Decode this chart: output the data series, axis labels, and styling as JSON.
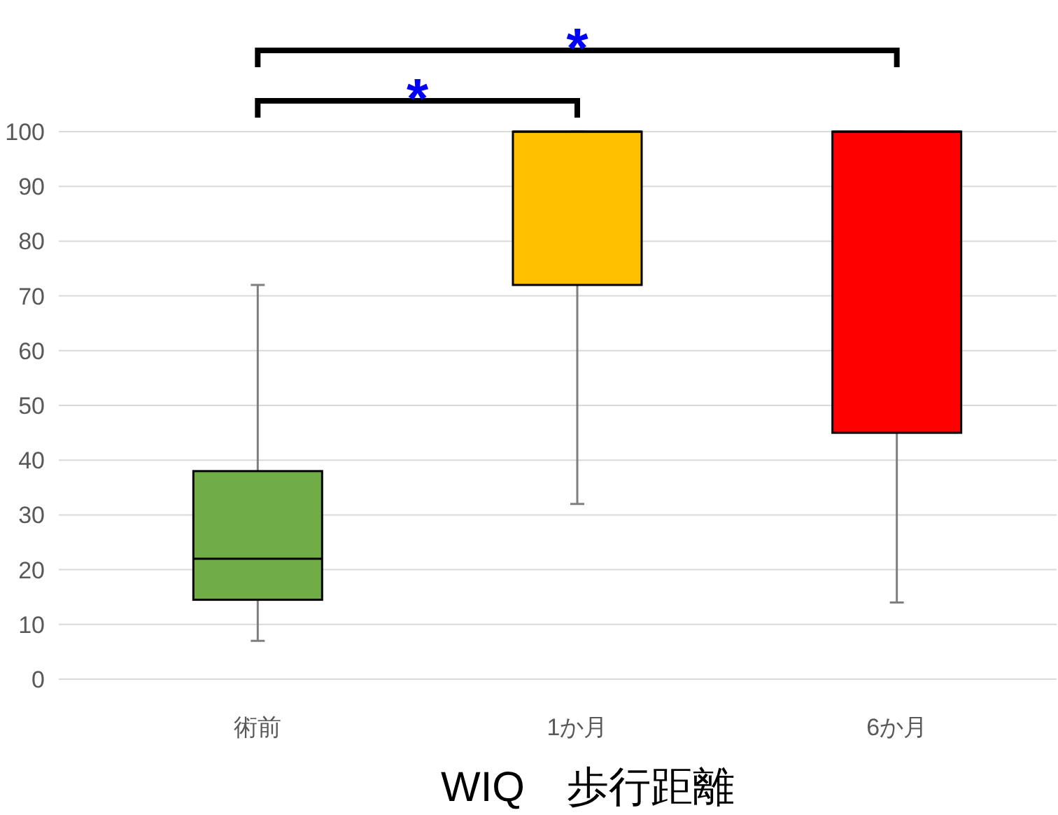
{
  "chart_data": {
    "type": "box",
    "xlabel": "WIQ　歩行距離",
    "categories": [
      "術前",
      "1か月",
      "6か月"
    ],
    "colors": [
      "#70ad47",
      "#ffc000",
      "#ff0000"
    ],
    "boxes": [
      {
        "low": 7,
        "q1": 14.5,
        "median": 22,
        "q3": 38,
        "high": 72
      },
      {
        "low": 32,
        "q1": 72,
        "median": 100,
        "q3": 100,
        "high": 100
      },
      {
        "low": 14,
        "q1": 45,
        "median": 100,
        "q3": 100,
        "high": 100
      }
    ],
    "ylim": [
      0,
      100
    ],
    "yticks": [
      0,
      10,
      20,
      30,
      40,
      50,
      60,
      70,
      80,
      90,
      100
    ],
    "grid": "y",
    "annotations": [
      "*",
      "*"
    ]
  }
}
